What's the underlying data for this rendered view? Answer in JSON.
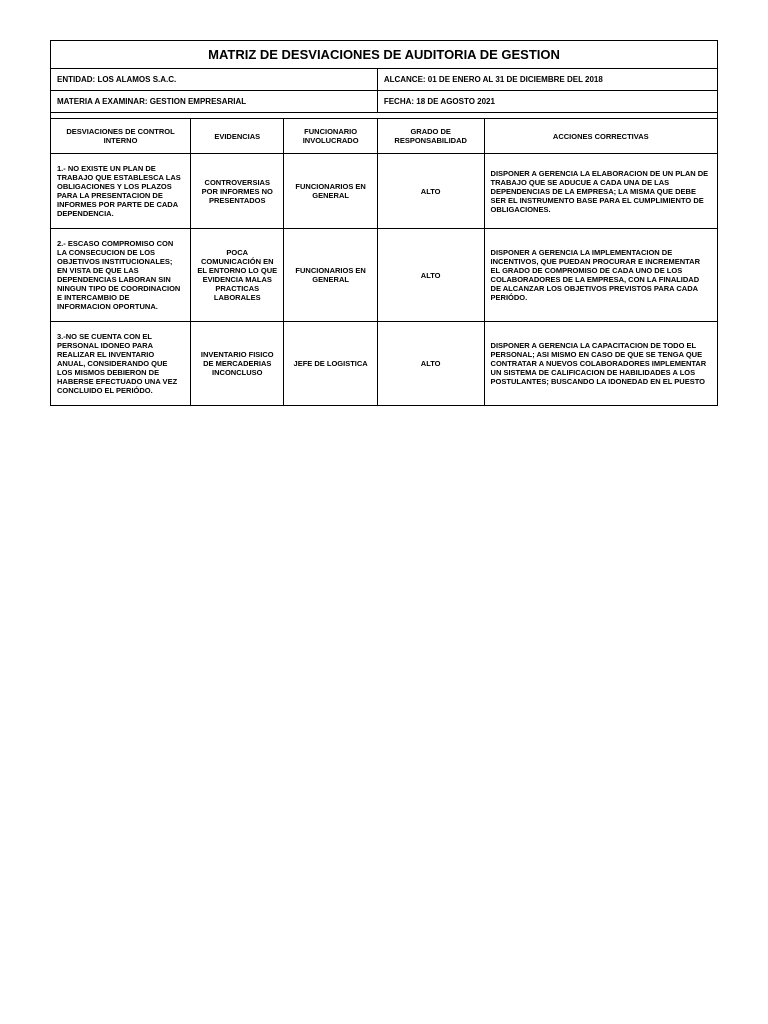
{
  "title": "MATRIZ DE DESVIACIONES DE AUDITORIA DE GESTION",
  "meta": {
    "entidad": "ENTIDAD: LOS ALAMOS S.A.C.",
    "alcance": "ALCANCE: 01 DE ENERO AL 31 DE DICIEMBRE DEL 2018",
    "materia": "MATERIA A EXAMINAR: GESTION EMPRESARIAL",
    "fecha": "FECHA: 18 DE AGOSTO 2021"
  },
  "headers": {
    "desviaciones": "DESVIACIONES DE CONTROL INTERNO",
    "evidencias": "EVIDENCIAS",
    "funcionario": "FUNCIONARIO INVOLUCRADO",
    "grado": "GRADO DE RESPONSABILIDAD",
    "acciones": "ACCIONES CORRECTIVAS"
  },
  "rows": [
    {
      "desv": "1.- NO EXISTE UN PLAN DE TRABAJO QUE ESTABLESCA LAS OBLIGACIONES Y LOS PLAZOS PARA LA PRESENTACION DE INFORMES POR PARTE DE CADA DEPENDENCIA.",
      "evid": "CONTROVERSIAS POR INFORMES NO PRESENTADOS",
      "func": "FUNCIONARIOS EN GENERAL",
      "grado": "ALTO",
      "acc": "DISPONER A GERENCIA LA ELABORACION DE UN PLAN DE TRABAJO QUE SE ADUCUE A CADA UNA DE LAS DEPENDENCIAS DE LA EMPRESA; LA MISMA QUE DEBE SER EL INSTRUMENTO BASE PARA EL CUMPLIMIENTO DE OBLIGACIONES."
    },
    {
      "desv": "2.- ESCASO COMPROMISO CON LA CONSECUCION DE LOS OBJETIVOS INSTITUCIONALES; EN VISTA DE QUE LAS DEPENDENCIAS LABORAN SIN NINGUN TIPO DE COORDINACION E INTERCAMBIO DE INFORMACION OPORTUNA.",
      "evid": "POCA COMUNICACIÓN EN EL ENTORNO LO QUE EVIDENCIA MALAS PRACTICAS LABORALES",
      "func": "FUNCIONARIOS EN GENERAL",
      "grado": "ALTO",
      "acc": "DISPONER A GERENCIA LA IMPLEMENTACION DE INCENTIVOS, QUE PUEDAN PROCURAR E INCREMENTAR EL GRADO DE COMPROMISO DE CADA UNO DE LOS COLABORADORES DE LA EMPRESA, CON LA FINALIDAD DE ALCANZAR LOS OBJETIVOS PREVISTOS PARA CADA PERIÓDO."
    },
    {
      "desv": "3.-NO SE CUENTA CON EL PERSONAL IDONEO PARA REALIZAR EL INVENTARIO ANUAL, CONSIDERANDO QUE LOS MISMOS DEBIERON DE HABERSE EFECTUADO UNA VEZ CONCLUIDO EL PERIÓDO.",
      "evid": "INVENTARIO FISICO DE MERCADERIAS INCONCLUSO",
      "func": "JEFE DE LOGISTICA",
      "grado": "ALTO",
      "acc": "DISPONER A GERENCIA LA CAPACITACION DE TODO EL PERSONAL; ASI MISMO EN CASO DE QUE SE TENGA QUE CONTRATAR A NUEVOS COLABORADORES IMPLEMENTAR UN SISTEMA DE CALIFICACION DE HABILIDADES A LOS POSTULANTES; BUSCANDO LA IDONEDAD EN EL PUESTO"
    }
  ],
  "style": {
    "border_color": "#000000",
    "background": "#ffffff",
    "title_fontsize": 13,
    "meta_fontsize": 8,
    "cell_fontsize": 7.5
  }
}
